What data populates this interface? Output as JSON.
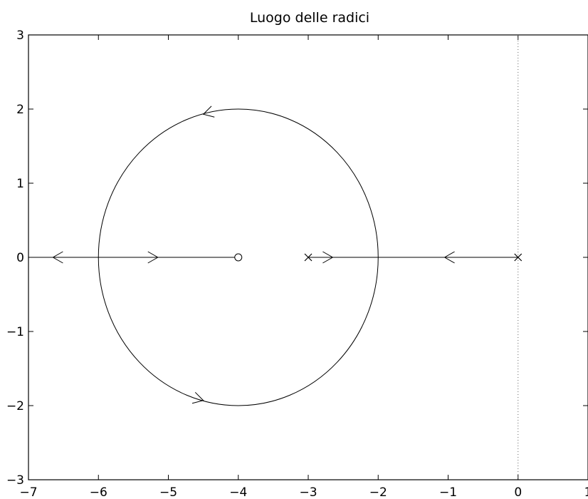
{
  "chart_data": {
    "type": "line",
    "title": "Luogo delle radici",
    "xlabel": "",
    "ylabel": "",
    "xlim": [
      -7,
      1
    ],
    "ylim": [
      -3,
      3
    ],
    "grid": false,
    "x_ticks": [
      -7,
      -6,
      -5,
      -4,
      -3,
      -2,
      -1,
      0,
      1
    ],
    "x_tick_labels": [
      "−7",
      "−6",
      "−5",
      "−4",
      "−3",
      "−2",
      "−1",
      "0",
      "1"
    ],
    "y_ticks": [
      -3,
      -2,
      -1,
      0,
      1,
      2,
      3
    ],
    "y_tick_labels": [
      "−3",
      "−2",
      "−1",
      "0",
      "1",
      "2",
      "3"
    ],
    "poles": [
      {
        "x": -3,
        "y": 0
      },
      {
        "x": 0,
        "y": 0
      }
    ],
    "zeros": [
      {
        "x": -4,
        "y": 0
      }
    ],
    "circle": {
      "center": [
        -4,
        0
      ],
      "radius": 2
    },
    "segments": [
      {
        "from": [
          -7,
          0
        ],
        "to": [
          -4,
          0
        ]
      },
      {
        "from": [
          -3,
          0
        ],
        "to": [
          0,
          0
        ]
      }
    ],
    "arrows": [
      {
        "x": -6.65,
        "y": 0,
        "direction": "left"
      },
      {
        "x": -5.15,
        "y": 0,
        "direction": "right"
      },
      {
        "x": -2.65,
        "y": 0,
        "direction": "right"
      },
      {
        "x": -1.05,
        "y": 0,
        "direction": "left"
      },
      {
        "x": -4.5,
        "y": 1.93,
        "direction": "ccw"
      },
      {
        "x": -4.5,
        "y": -1.93,
        "direction": "ccw"
      }
    ],
    "imag_axis_line": {
      "x": 0,
      "style": "dotted"
    }
  }
}
